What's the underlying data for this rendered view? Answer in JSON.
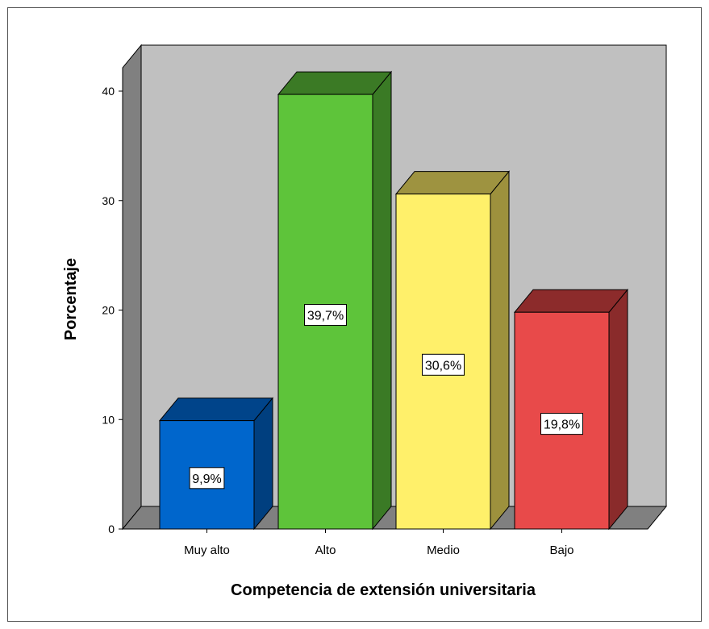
{
  "chart_data": {
    "type": "bar",
    "style": "3d",
    "categories": [
      "Muy alto",
      "Alto",
      "Medio",
      "Bajo"
    ],
    "values": [
      9.9,
      39.7,
      30.6,
      19.8
    ],
    "data_labels": [
      "9,9%",
      "39,7%",
      "30,6%",
      "19,8%"
    ],
    "y_ticks": [
      "0",
      "10",
      "20",
      "30",
      "40"
    ],
    "ylim": [
      0,
      40
    ],
    "xlabel": "Competencia de extensión universitaria",
    "ylabel": "Porcentaje",
    "grid": false,
    "colors": {
      "front": [
        "#0066cc",
        "#5ec43a",
        "#fff06a",
        "#e84a4a"
      ],
      "top": [
        "#00448a",
        "#3b7a25",
        "#9e9340",
        "#8c2b2b"
      ],
      "side": [
        "#003f7f",
        "#3a7a25",
        "#9d913d",
        "#8a2b2b"
      ],
      "back_wall": "#c0c0c0",
      "side_wall": "#808080",
      "floor": "#808080"
    }
  }
}
